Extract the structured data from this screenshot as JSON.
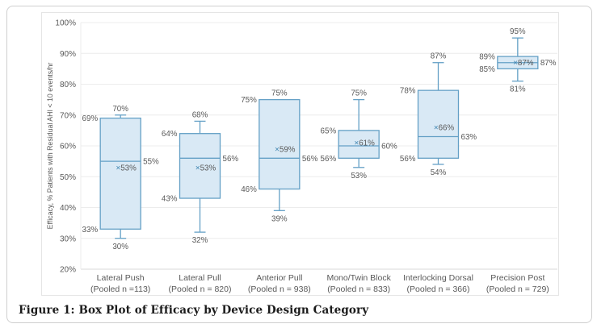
{
  "figure": {
    "caption": "Figure 1: Box Plot of Efficacy by Device Design Category"
  },
  "chart_data": {
    "type": "box",
    "ylabel": "Efficacy, % Patients with Residual AHI < 10 events/hr",
    "ylim": [
      20,
      100
    ],
    "ytick_step": 10,
    "ytick_suffix": "%",
    "grid": true,
    "legend": "none",
    "mean_marker": "×",
    "colors": {
      "box_fill": "#d9e9f5",
      "box_stroke": "#64a0c6",
      "mean_marker": "#3e84b0",
      "grid": "#ececec",
      "axis": "#d9d9d9",
      "label_text": "#595959"
    },
    "categories": [
      {
        "label": "Lateral Push",
        "sublabel": "(Pooled n =113)",
        "min": 30,
        "q1": 33,
        "median": 55,
        "q3": 69,
        "max": 70,
        "mean": 53
      },
      {
        "label": "Lateral Pull",
        "sublabel": "(Pooled n = 820)",
        "min": 32,
        "q1": 43,
        "median": 56,
        "q3": 64,
        "max": 68,
        "mean": 53
      },
      {
        "label": "Anterior Pull",
        "sublabel": "(Pooled n = 938)",
        "min": 39,
        "q1": 46,
        "median": 56,
        "q3": 75,
        "max": 75,
        "mean": 59
      },
      {
        "label": "Mono/Twin Block",
        "sublabel": "(Pooled n = 833)",
        "min": 53,
        "q1": 56,
        "median": 60,
        "q3": 65,
        "max": 75,
        "mean": 61
      },
      {
        "label": "Interlocking Dorsal",
        "sublabel": "(Pooled n = 366)",
        "min": 54,
        "q1": 56,
        "median": 63,
        "q3": 78,
        "max": 87,
        "mean": 66
      },
      {
        "label": "Precision Post",
        "sublabel": "(Pooled n = 729)",
        "min": 81,
        "q1": 85,
        "median": 87,
        "q3": 89,
        "max": 95,
        "mean": 87
      }
    ]
  }
}
